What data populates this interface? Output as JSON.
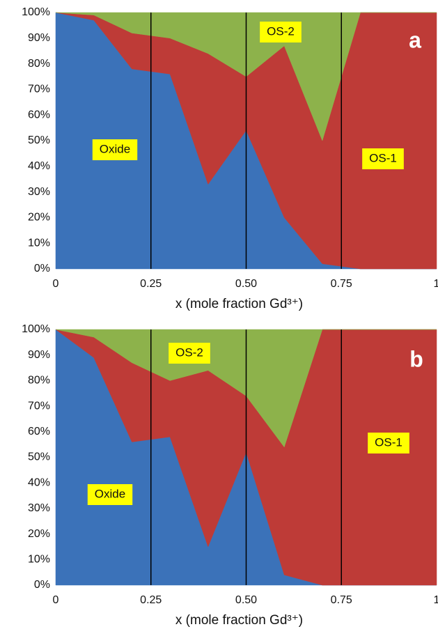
{
  "chart_data": [
    {
      "type": "area",
      "stacked": true,
      "panel_label": "a",
      "x_label": "x (mole fraction Gd³⁺)",
      "x": [
        0,
        0.1,
        0.2,
        0.3,
        0.4,
        0.5,
        0.6,
        0.7,
        0.8,
        0.9,
        1
      ],
      "series": [
        {
          "name": "Oxide",
          "color": "#3b72b9",
          "values": [
            100,
            97,
            78,
            76,
            33,
            54,
            20,
            2,
            0,
            0,
            0
          ]
        },
        {
          "name": "OS-1",
          "color": "#be3b37",
          "values": [
            0,
            2,
            14,
            14,
            51,
            21,
            67,
            48,
            100,
            100,
            100
          ]
        },
        {
          "name": "OS-2",
          "color": "#8db24b",
          "values": [
            0,
            1,
            8,
            10,
            16,
            25,
            13,
            50,
            0,
            0,
            0
          ]
        }
      ],
      "xlim": [
        0,
        1
      ],
      "xticks": [
        0,
        0.25,
        {
          "value": 0.5,
          "label": "0.50"
        },
        0.75,
        1
      ],
      "ylim": [
        0,
        100
      ],
      "yticks": [
        {
          "value": 0,
          "label": "0%"
        },
        {
          "value": 10,
          "label": "10%"
        },
        {
          "value": 20,
          "label": "20%"
        },
        {
          "value": 30,
          "label": "30%"
        },
        {
          "value": 40,
          "label": "40%"
        },
        {
          "value": 50,
          "label": "50%"
        },
        {
          "value": 60,
          "label": "60%"
        },
        {
          "value": 70,
          "label": "70%"
        },
        {
          "value": 80,
          "label": "80%"
        },
        {
          "value": 90,
          "label": "90%"
        },
        {
          "value": 100,
          "label": "100%"
        }
      ],
      "annotation_color": "#ffff00"
    },
    {
      "type": "area",
      "stacked": true,
      "panel_label": "b",
      "x_label": "x (mole fraction Gd³⁺)",
      "x": [
        0,
        0.1,
        0.2,
        0.3,
        0.4,
        0.5,
        0.6,
        0.7,
        0.8,
        0.9,
        1
      ],
      "series": [
        {
          "name": "Oxide",
          "color": "#3b72b9",
          "values": [
            100,
            89,
            56,
            58,
            15,
            52,
            4,
            0,
            0,
            0,
            0
          ]
        },
        {
          "name": "OS-1",
          "color": "#be3b37",
          "values": [
            0,
            8,
            31,
            22,
            69,
            22,
            50,
            100,
            100,
            100,
            100
          ]
        },
        {
          "name": "OS-2",
          "color": "#8db24b",
          "values": [
            0,
            3,
            13,
            20,
            16,
            26,
            46,
            0,
            0,
            0,
            0
          ]
        }
      ],
      "xlim": [
        0,
        1
      ],
      "xticks": [
        0,
        0.25,
        {
          "value": 0.5,
          "label": "0.50"
        },
        0.75,
        1
      ],
      "ylim": [
        0,
        100
      ],
      "yticks": [
        {
          "value": 0,
          "label": "0%"
        },
        {
          "value": 10,
          "label": "10%"
        },
        {
          "value": 20,
          "label": "20%"
        },
        {
          "value": 30,
          "label": "30%"
        },
        {
          "value": 40,
          "label": "40%"
        },
        {
          "value": 50,
          "label": "50%"
        },
        {
          "value": 60,
          "label": "60%"
        },
        {
          "value": 70,
          "label": "70%"
        },
        {
          "value": 80,
          "label": "80%"
        },
        {
          "value": 90,
          "label": "90%"
        },
        {
          "value": 100,
          "label": "100%"
        }
      ],
      "annotation_color": "#ffff00"
    }
  ]
}
